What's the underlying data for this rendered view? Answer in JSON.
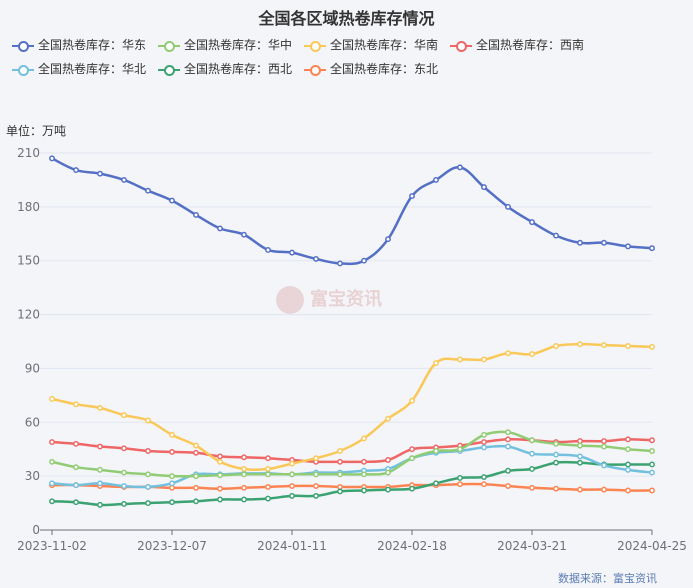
{
  "title": "全国各区域热卷库存情况",
  "unit": "单位：万吨",
  "source": "数据来源：富宝资讯",
  "watermark": "富宝资讯",
  "chart_data": {
    "type": "line",
    "title": "全国各区域热卷库存情况",
    "ylabel": "单位：万吨",
    "ylim": [
      0,
      210
    ],
    "yticks": [
      0,
      30,
      60,
      90,
      120,
      150,
      180,
      210
    ],
    "x_tick_labels": [
      "2023-11-02",
      "2023-12-07",
      "2024-01-11",
      "2024-02-18",
      "2024-03-21",
      "2024-04-25"
    ],
    "x_tick_index": [
      0,
      5,
      10,
      15,
      20,
      25
    ],
    "grid": true,
    "legend_position": "top",
    "series": [
      {
        "name": "全国热卷库存：华东",
        "color": "#5470c6",
        "values": [
          207,
          200.5,
          198.5,
          195,
          189,
          183.5,
          175.5,
          168,
          164.5,
          156,
          154.5,
          151,
          148.5,
          150,
          162,
          186,
          195,
          202,
          191,
          180,
          171.5,
          164,
          160,
          160,
          158,
          157
        ]
      },
      {
        "name": "全国热卷库存：华中",
        "color": "#91cc75",
        "values": [
          38,
          35,
          33.5,
          32,
          31,
          30,
          30,
          30.5,
          31,
          31,
          31,
          31,
          31,
          31,
          32,
          40,
          44,
          45,
          53,
          54.5,
          50,
          48,
          47,
          46.5,
          45,
          44
        ]
      },
      {
        "name": "全国热卷库存：华南",
        "color": "#fac858",
        "values": [
          73,
          70,
          68,
          64,
          61,
          53,
          47,
          38,
          34,
          34,
          37,
          40,
          44,
          51,
          62,
          72,
          93,
          95,
          95,
          98.5,
          98,
          102.5,
          103.5,
          103,
          102.5,
          102
        ]
      },
      {
        "name": "全国热卷库存：西南",
        "color": "#ee6666",
        "values": [
          49,
          48,
          46.5,
          45.5,
          44,
          43.5,
          43,
          41,
          40.5,
          40,
          39,
          38,
          38,
          38,
          39,
          45,
          46,
          47,
          49,
          50.5,
          50,
          49,
          49.5,
          49.5,
          50.5,
          50
        ]
      },
      {
        "name": "全国热卷库存：华北",
        "color": "#73c0de",
        "values": [
          26,
          25,
          26,
          24.5,
          24,
          26,
          31,
          31,
          31.5,
          31.5,
          31,
          32,
          32,
          33,
          34,
          40,
          43,
          44,
          46,
          46.5,
          42.5,
          42,
          41,
          36,
          33.5,
          32
        ]
      },
      {
        "name": "全国热卷库存：西北",
        "color": "#3ba272",
        "values": [
          16,
          15.5,
          14,
          14.5,
          15,
          15.5,
          16,
          17,
          17,
          17.5,
          19,
          19,
          21.5,
          22,
          22.5,
          23,
          26,
          29,
          29.5,
          33,
          34,
          37.5,
          37.5,
          36.5,
          36.5,
          36.5
        ]
      },
      {
        "name": "全国热卷库存：东北",
        "color": "#fc8452",
        "values": [
          25,
          25,
          24.5,
          24,
          24,
          23.5,
          23.5,
          23,
          23.5,
          24,
          24.5,
          24.5,
          24,
          24,
          24,
          25,
          25,
          25.5,
          25.5,
          24.5,
          23.5,
          23,
          22.5,
          22.5,
          22,
          22
        ]
      }
    ]
  }
}
